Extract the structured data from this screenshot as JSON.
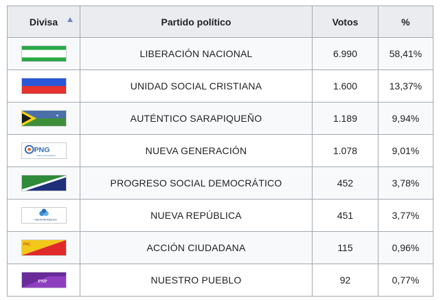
{
  "header": {
    "divisa": "Divisa",
    "partido": "Partido político",
    "votos": "Votos",
    "pct": "%"
  },
  "rows": [
    {
      "party": "LIBERACIÓN NACIONAL",
      "votes": "6.990",
      "pct": "58,41%",
      "flag_icon": "pln-flag-icon"
    },
    {
      "party": "UNIDAD SOCIAL CRISTIANA",
      "votes": "1.600",
      "pct": "13,37%",
      "flag_icon": "pusc-flag-icon"
    },
    {
      "party": "AUTÉNTICO SARAPIQUEÑO",
      "votes": "1.189",
      "pct": "9,94%",
      "flag_icon": "pas-flag-icon"
    },
    {
      "party": "NUEVA GENERACIÓN",
      "votes": "1.078",
      "pct": "9,01%",
      "flag_icon": "png-logo-icon",
      "logo_text": "PNG",
      "logo_subtext": "Nueva Generación"
    },
    {
      "party": "PROGRESO SOCIAL DEMOCRÁTICO",
      "votes": "452",
      "pct": "3,78%",
      "flag_icon": "psd-flag-icon"
    },
    {
      "party": "NUEVA REPÚBLICA",
      "votes": "451",
      "pct": "3,77%",
      "flag_icon": "pnr-logo-icon",
      "logo_subtext": "NUEVA REPÚBLICA"
    },
    {
      "party": "ACCIÓN CIUDADANA",
      "votes": "115",
      "pct": "0,96%",
      "flag_icon": "pac-flag-icon",
      "logo_text": "PAC"
    },
    {
      "party": "NUESTRO PUEBLO",
      "votes": "92",
      "pct": "0,77%",
      "flag_icon": "pnp-flag-icon",
      "logo_text": "PNP"
    }
  ],
  "colors": {
    "header_bg": "#eaecf0",
    "border": "#a2a9b1",
    "sort_arrow": "#6f87b8"
  }
}
